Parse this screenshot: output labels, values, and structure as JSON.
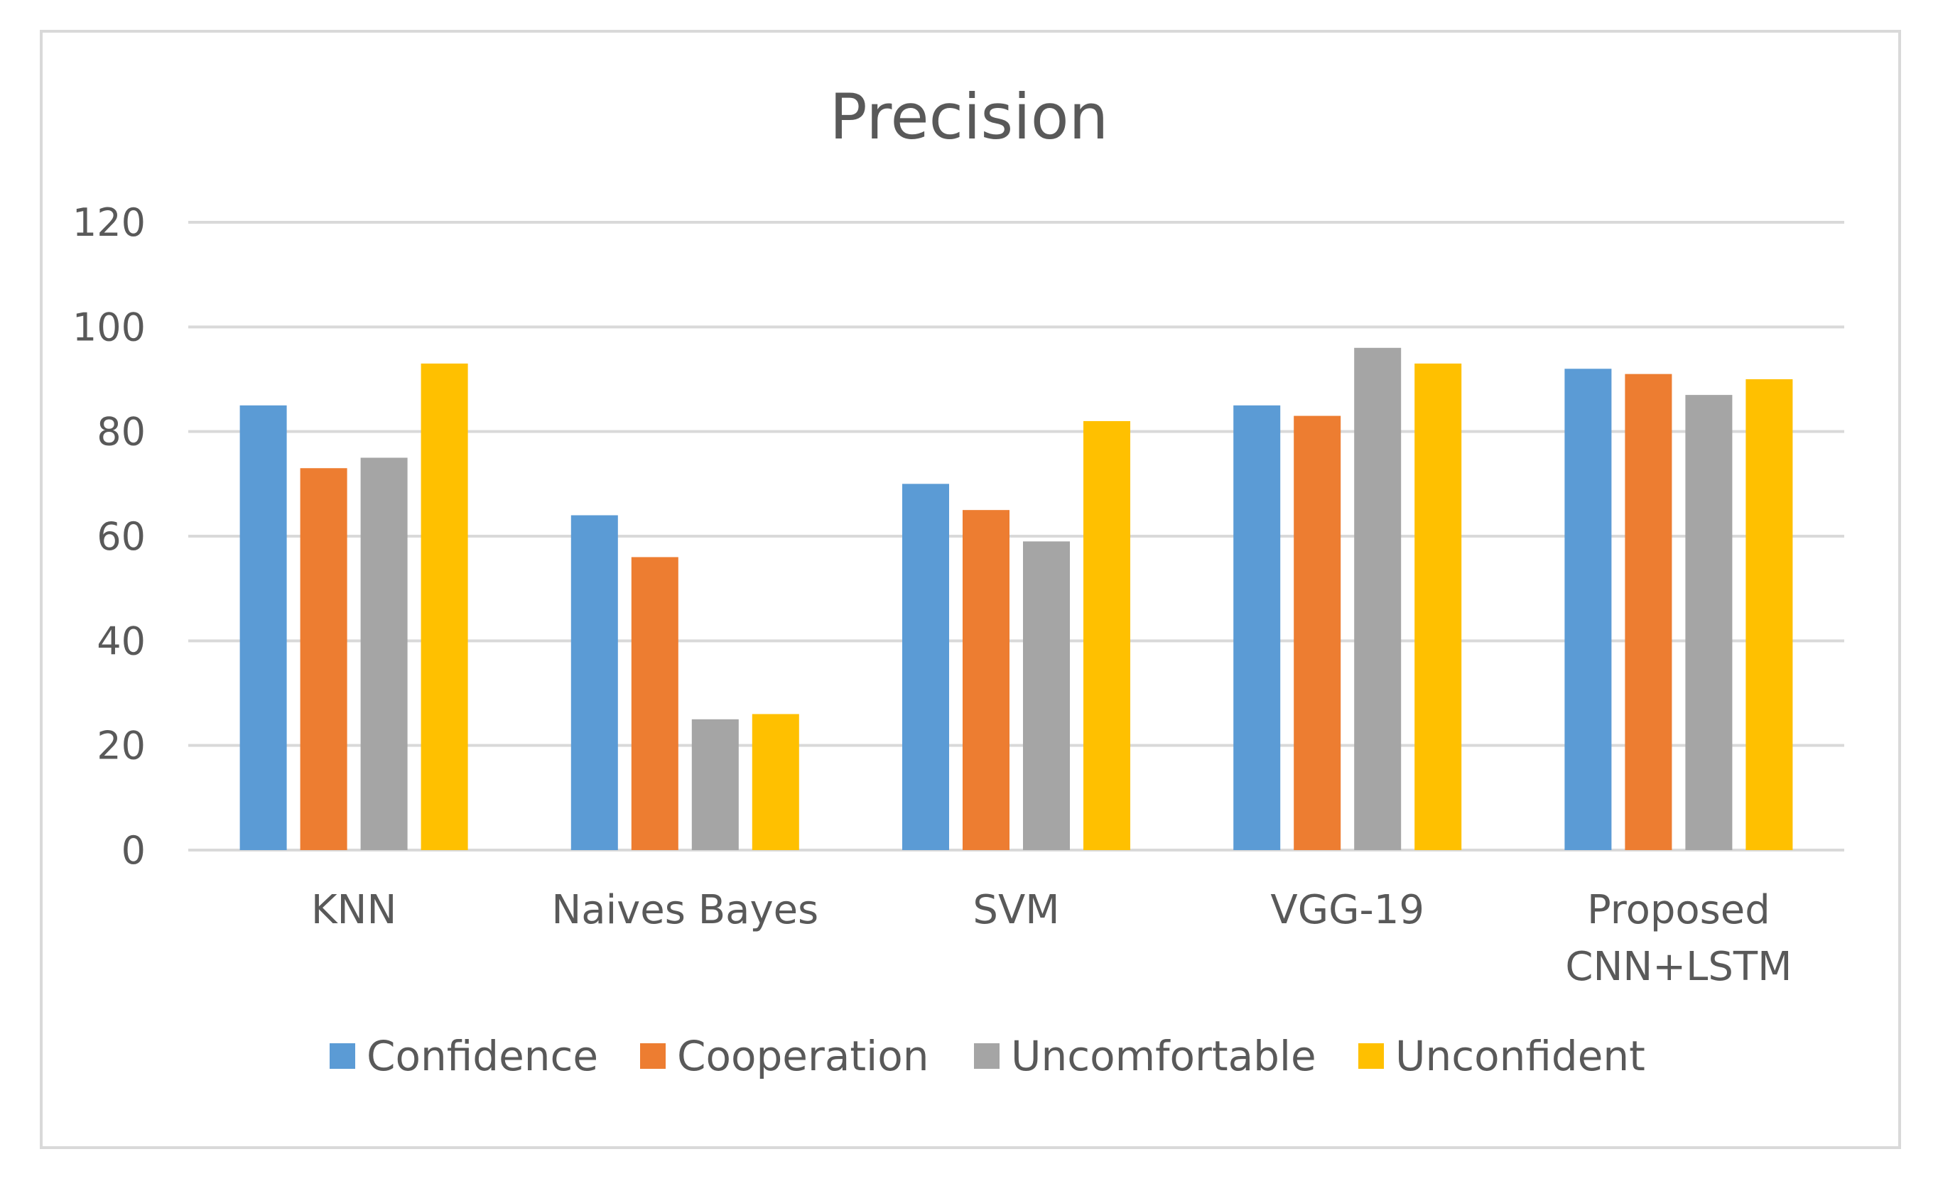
{
  "chart_data": {
    "type": "bar",
    "title": "Precision",
    "xlabel": "",
    "ylabel": "",
    "ylim": [
      0,
      120
    ],
    "yticks": [
      0,
      20,
      40,
      60,
      80,
      100,
      120
    ],
    "grid": true,
    "legend_position": "bottom",
    "categories": [
      [
        "KNN"
      ],
      [
        "Naives Bayes"
      ],
      [
        "SVM"
      ],
      [
        "VGG-19"
      ],
      [
        "Proposed",
        "CNN+LSTM"
      ]
    ],
    "series": [
      {
        "name": "Confidence",
        "color": "#5B9BD5",
        "values": [
          85,
          64,
          70,
          85,
          92
        ]
      },
      {
        "name": "Cooperation",
        "color": "#ED7D31",
        "values": [
          73,
          56,
          65,
          83,
          91
        ]
      },
      {
        "name": "Uncomfortable",
        "color": "#A5A5A5",
        "values": [
          75,
          25,
          59,
          96,
          87
        ]
      },
      {
        "name": "Unconfident",
        "color": "#FFC000",
        "values": [
          93,
          26,
          82,
          93,
          90
        ]
      }
    ]
  },
  "colors": {
    "gridline": "#D9D9D9",
    "frame": "#D9D9D9",
    "text": "#595959"
  }
}
